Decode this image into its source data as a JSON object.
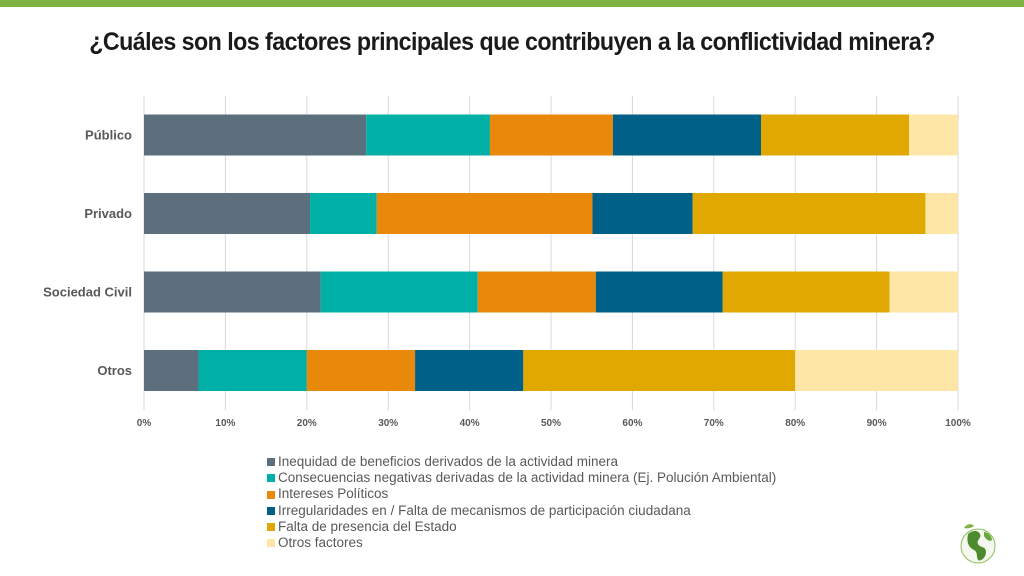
{
  "title": "¿Cuáles son los factores principales que contribuyen a la conflictividad minera?",
  "colors": {
    "top_bar": "#7cb342",
    "gridline": "#d9d9d9"
  },
  "chart_data": {
    "type": "bar",
    "orientation": "horizontal",
    "stacked": true,
    "percent_stacked": true,
    "categories": [
      "Público",
      "Privado",
      "Sociedad Civil",
      "Otros"
    ],
    "series": [
      {
        "name": "Inequidad de beneficios derivados de la actividad minera",
        "color": "#5b6f7d",
        "values": [
          27.3,
          20.4,
          21.7,
          6.7
        ]
      },
      {
        "name": "Consecuencias negativas derivadas de la actividad minera (Ej. Polución Ambiental)",
        "color": "#00b0a6",
        "values": [
          15.2,
          8.2,
          19.3,
          13.3
        ]
      },
      {
        "name": "Intereses Políticos",
        "color": "#e8890c",
        "values": [
          15.1,
          26.5,
          14.5,
          13.3
        ]
      },
      {
        "name": "Irregularidades en / Falta de mecanismos de participación ciudadana",
        "color": "#006088",
        "values": [
          18.2,
          12.3,
          15.6,
          13.3
        ]
      },
      {
        "name": "Falta de presencia del Estado",
        "color": "#e0a800",
        "values": [
          18.2,
          28.6,
          20.5,
          33.4
        ]
      },
      {
        "name": "Otros factores",
        "color": "#fde6a6",
        "values": [
          6.0,
          4.0,
          8.4,
          20.0
        ]
      }
    ],
    "xlim": [
      0,
      100
    ],
    "xticks": [
      "0%",
      "10%",
      "20%",
      "30%",
      "40%",
      "50%",
      "60%",
      "70%",
      "80%",
      "90%",
      "100%"
    ],
    "grid": true,
    "legend_position": "bottom"
  }
}
